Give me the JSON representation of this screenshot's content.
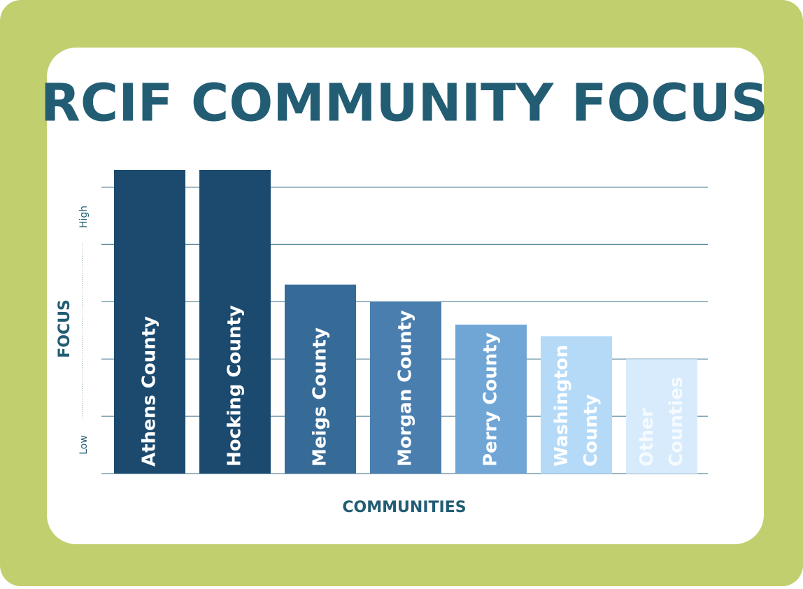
{
  "chart_data": {
    "type": "bar",
    "title": "RCIF COMMUNITY FOCUS",
    "x_label": "COMMUNITIES",
    "y_label": "FOCUS",
    "y_high_label": "High",
    "y_low_label": "Low",
    "categories": [
      "Athens County",
      "Hocking County",
      "Meigs County",
      "Morgan County",
      "Perry County",
      "Washington County",
      "Other Counties"
    ],
    "values": [
      5.3,
      5.3,
      3.3,
      3.0,
      2.6,
      2.4,
      2.0
    ],
    "colors": [
      "#1c4a6e",
      "#1c4a6e",
      "#376b97",
      "#4a7eae",
      "#70a6d6",
      "#b4daf8",
      "#d7ebfc"
    ],
    "ylim": [
      0,
      5.3
    ],
    "yticks": [
      0,
      1,
      2,
      3,
      4,
      5
    ],
    "grid": true
  }
}
